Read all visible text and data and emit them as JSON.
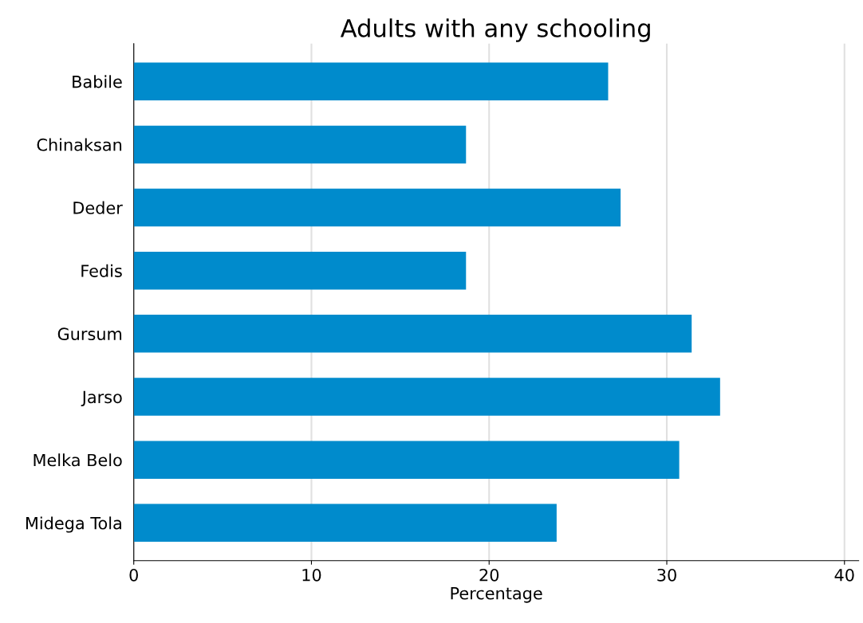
{
  "chart_data": {
    "type": "bar",
    "orientation": "horizontal",
    "title": "Adults with any schooling",
    "xlabel": "Percentage",
    "categories": [
      "Babile",
      "Chinaksan",
      "Deder",
      "Fedis",
      "Gursum",
      "Jarso",
      "Melka Belo",
      "Midega Tola"
    ],
    "values": [
      26.7,
      18.7,
      27.4,
      18.7,
      31.4,
      33.0,
      30.7,
      23.8
    ],
    "color": "#008bcc",
    "xlim": [
      0,
      40.8
    ],
    "xticks": [
      0,
      10,
      20,
      30,
      40
    ],
    "grid": "x"
  }
}
